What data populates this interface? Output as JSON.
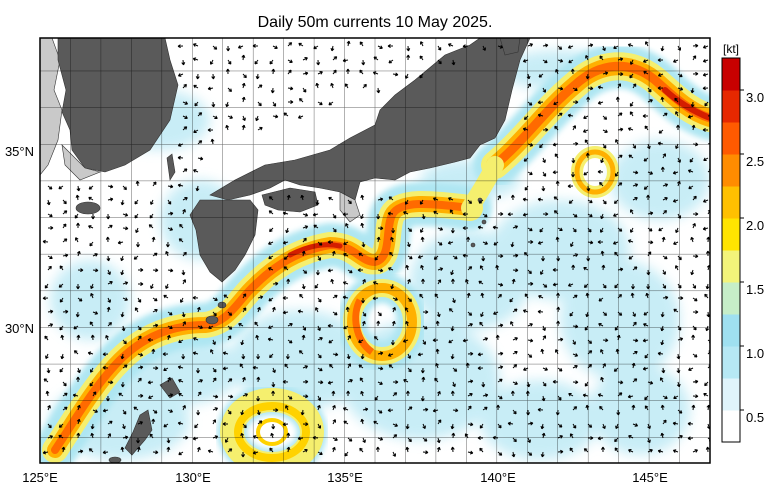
{
  "title": "Daily 50m currents 10 May 2025.",
  "map": {
    "lon_range": [
      125,
      147
    ],
    "lat_range": [
      26.3,
      37.9
    ],
    "lat_labels": [
      {
        "value": 35,
        "text": "35°N"
      },
      {
        "value": 30,
        "text": "30°N"
      }
    ],
    "lon_labels": [
      {
        "value": 125,
        "text": "125°E"
      },
      {
        "value": 130,
        "text": "130°E"
      },
      {
        "value": 135,
        "text": "135°E"
      },
      {
        "value": 140,
        "text": "140°E"
      },
      {
        "value": 145,
        "text": "145°E"
      }
    ],
    "grid": true,
    "colors": {
      "land": "#5a5a5a",
      "land_secondary": "#c9c9c9",
      "ocean": "#ffffff",
      "arrow": "#000000"
    }
  },
  "colorbar": {
    "unit": "[kt]",
    "range": [
      0.25,
      3.25
    ],
    "ticks": [
      {
        "value": 0.5,
        "text": "0.5"
      },
      {
        "value": 1.0,
        "text": "1.0"
      },
      {
        "value": 1.5,
        "text": "1.5"
      },
      {
        "value": 2.0,
        "text": "2.0"
      },
      {
        "value": 2.5,
        "text": "2.5"
      },
      {
        "value": 3.0,
        "text": "3.0"
      }
    ],
    "colors": [
      "#ffffff",
      "#dff4fb",
      "#b6e8f4",
      "#9fe0f0",
      "#c6eec8",
      "#f3f47a",
      "#ffe400",
      "#ffc000",
      "#ff8c00",
      "#ff5a00",
      "#e62800",
      "#c80000"
    ]
  }
}
